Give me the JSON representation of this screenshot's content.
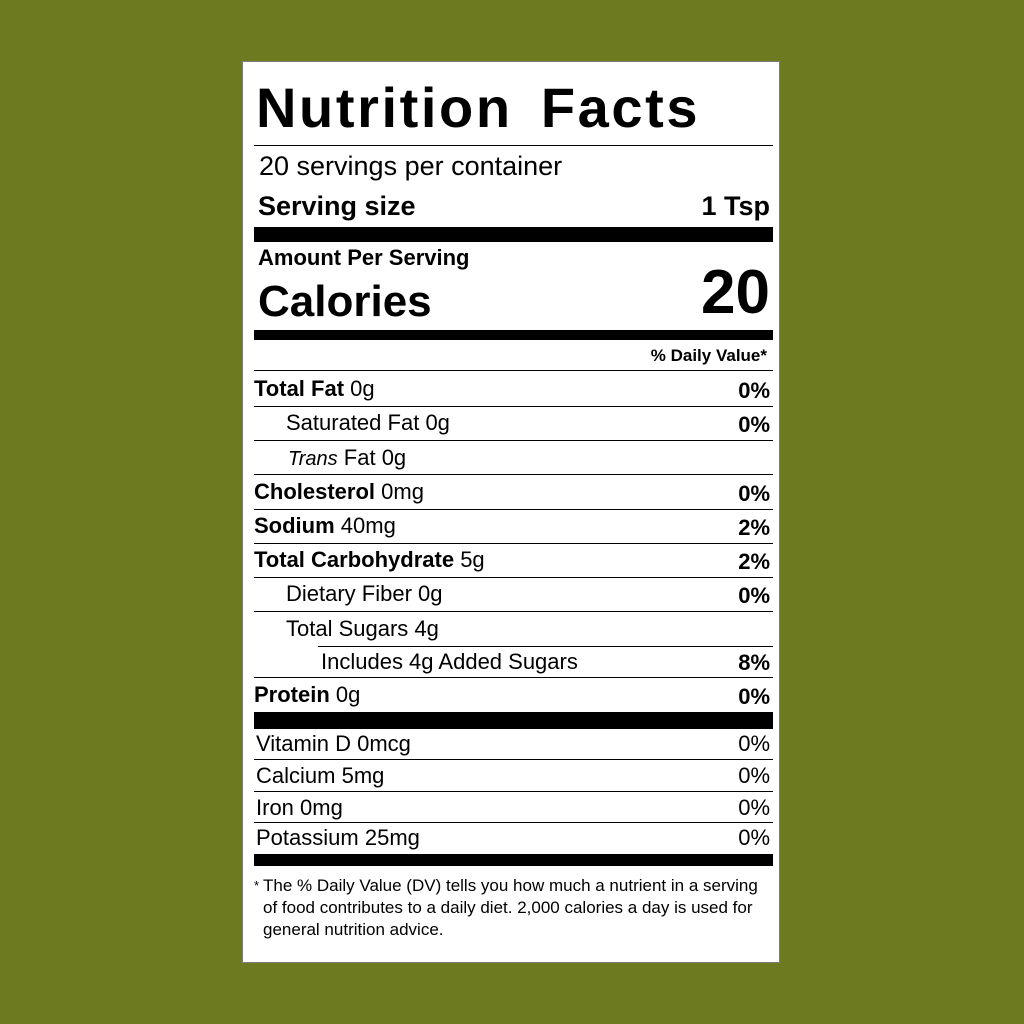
{
  "background_color": "#6e7a1f",
  "label": {
    "title": "Nutrition Facts",
    "servings_per_container": "20 servings per container",
    "serving_size_label": "Serving size",
    "serving_size_value": "1 Tsp",
    "amount_per_serving": "Amount Per Serving",
    "calories_label": "Calories",
    "calories_value": "20",
    "daily_value_header": "% Daily Value*",
    "nutrients": [
      {
        "name": "Total Fat",
        "amount": "0g",
        "dv": "0%"
      },
      {
        "name": "Saturated Fat",
        "amount": "0g",
        "dv": "0%"
      },
      {
        "name_italic": "Trans",
        "name": "Fat",
        "amount": "0g",
        "dv": ""
      },
      {
        "name": "Cholesterol",
        "amount": "0mg",
        "dv": "0%"
      },
      {
        "name": "Sodium",
        "amount": "40mg",
        "dv": "2%"
      },
      {
        "name": "Total Carbohydrate",
        "amount": "5g",
        "dv": "2%"
      },
      {
        "name": "Dietary Fiber",
        "amount": "0g",
        "dv": "0%"
      },
      {
        "name": "Total Sugars",
        "amount": "4g",
        "dv": ""
      },
      {
        "name": "Includes 4g Added Sugars",
        "amount": "",
        "dv": "8%"
      },
      {
        "name": "Protein",
        "amount": "0g",
        "dv": "0%"
      }
    ],
    "vitamins": [
      {
        "name": "Vitamin D",
        "amount": "0mcg",
        "dv": "0%"
      },
      {
        "name": "Calcium",
        "amount": "5mg",
        "dv": "0%"
      },
      {
        "name": "Iron",
        "amount": "0mg",
        "dv": "0%"
      },
      {
        "name": "Potassium",
        "amount": "25mg",
        "dv": "0%"
      }
    ],
    "footnote_star": "*",
    "footnote": "The % Daily Value (DV) tells you how much a nutrient in a serving of food contributes to a daily diet. 2,000 calories a day is used for general nutrition advice."
  }
}
